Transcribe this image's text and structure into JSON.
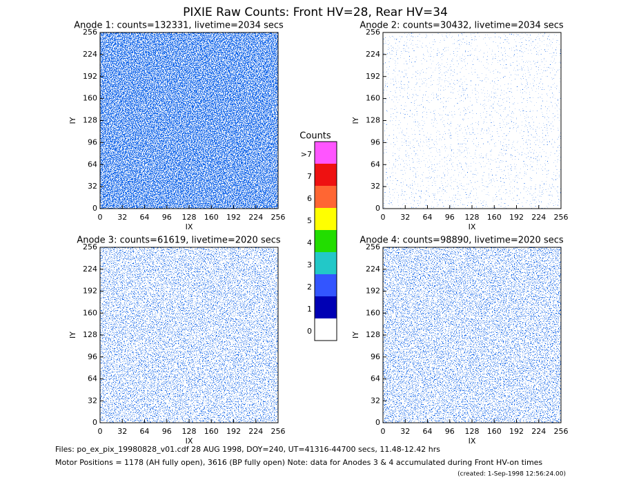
{
  "title": "PIXIE Raw Counts:  Front HV=28, Rear HV=34",
  "chart_data": [
    {
      "type": "heatmap",
      "title": "Anode 1: counts=132331, livetime=2034 secs",
      "xlabel": "IX",
      "ylabel": "IY",
      "xlim": [
        0,
        256
      ],
      "ylim": [
        0,
        256
      ],
      "xticks": [
        0,
        32,
        64,
        96,
        128,
        160,
        192,
        224,
        256
      ],
      "yticks": [
        0,
        32,
        64,
        96,
        128,
        160,
        192,
        224,
        256
      ]
    },
    {
      "type": "heatmap",
      "title": "Anode 2: counts=30432, livetime=2034 secs",
      "xlabel": "IX",
      "ylabel": "IY",
      "xlim": [
        0,
        256
      ],
      "ylim": [
        0,
        256
      ],
      "xticks": [
        0,
        32,
        64,
        96,
        128,
        160,
        192,
        224,
        256
      ],
      "yticks": [
        0,
        32,
        64,
        96,
        128,
        160,
        192,
        224,
        256
      ]
    },
    {
      "type": "heatmap",
      "title": "Anode 3: counts=61619, livetime=2020 secs",
      "xlabel": "IX",
      "ylabel": "IY",
      "xlim": [
        0,
        256
      ],
      "ylim": [
        0,
        256
      ],
      "xticks": [
        0,
        32,
        64,
        96,
        128,
        160,
        192,
        224,
        256
      ],
      "yticks": [
        0,
        32,
        64,
        96,
        128,
        160,
        192,
        224,
        256
      ]
    },
    {
      "type": "heatmap",
      "title": "Anode 4: counts=98890, livetime=2020 secs",
      "xlabel": "IX",
      "ylabel": "IY",
      "xlim": [
        0,
        256
      ],
      "ylim": [
        0,
        256
      ],
      "xticks": [
        0,
        32,
        64,
        96,
        128,
        160,
        192,
        224,
        256
      ],
      "yticks": [
        0,
        32,
        64,
        96,
        128,
        160,
        192,
        224,
        256
      ]
    }
  ],
  "colorbar": {
    "title": "Counts",
    "levels": [
      {
        "label": "0",
        "color": "#ffffff"
      },
      {
        "label": "1",
        "color": "#0000b4"
      },
      {
        "label": "2",
        "color": "#3355ff"
      },
      {
        "label": "3",
        "color": "#22c8c8"
      },
      {
        "label": "4",
        "color": "#22dd00"
      },
      {
        "label": "5",
        "color": "#ffff00"
      },
      {
        "label": "6",
        "color": "#ff6633"
      },
      {
        "label": "7",
        "color": "#ee1111"
      },
      {
        "label": ">7",
        "color": "#ff55ff"
      }
    ]
  },
  "footer": {
    "line1": "Files: po_ex_pix_19980828_v01.cdf    28 AUG 1998, DOY=240, UT=41316-44700 secs, 11.48-12.42 hrs",
    "line2": "Motor Positions = 1178 (AH fully open), 3616 (BP fully open)    Note: data for Anodes 3 & 4 accumulated during Front HV-on times",
    "line3": "(created:  1-Sep-1998 12:56:24.00)"
  }
}
